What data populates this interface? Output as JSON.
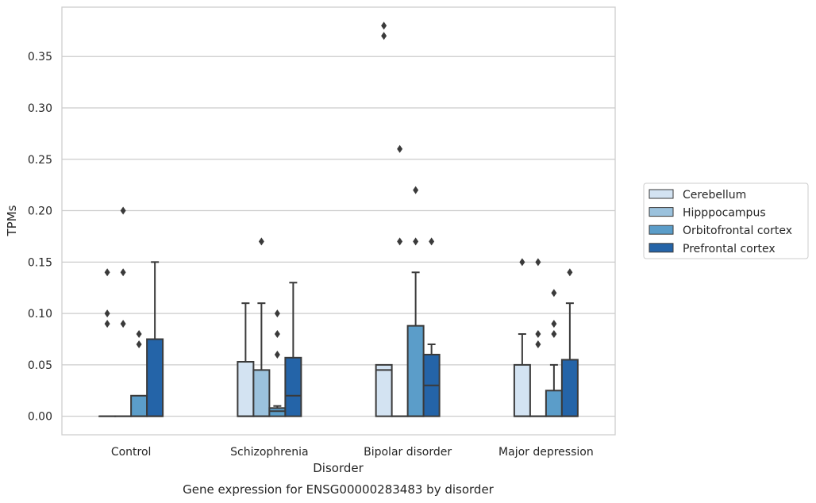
{
  "caption": "Gene expression for ENSG00000283483 by disorder",
  "chart_data": {
    "type": "boxplot",
    "xlabel": "Disorder",
    "ylabel": "TPMs",
    "ylim": [
      -0.018,
      0.398
    ],
    "y_ticks": [
      0.0,
      0.05,
      0.1,
      0.15,
      0.2,
      0.25,
      0.3,
      0.35
    ],
    "y_tick_labels": [
      "0.00",
      "0.05",
      "0.10",
      "0.15",
      "0.20",
      "0.25",
      "0.30",
      "0.35"
    ],
    "grid": true,
    "legend_position": "right",
    "categories": [
      "Control",
      "Schizophrenia",
      "Bipolar disorder",
      "Major depression"
    ],
    "series": [
      {
        "name": "Cerebellum",
        "color": "#d3e3f2",
        "boxes": [
          {
            "q1": 0.0,
            "median": 0.0,
            "q3": 0.0,
            "whisker_low": 0.0,
            "whisker_high": 0.0,
            "outliers": [
              0.1,
              0.14,
              0.09
            ]
          },
          {
            "q1": 0.0,
            "median": 0.0,
            "q3": 0.053,
            "whisker_low": 0.0,
            "whisker_high": 0.11,
            "outliers": []
          },
          {
            "q1": 0.0,
            "median": 0.045,
            "q3": 0.05,
            "whisker_low": 0.0,
            "whisker_high": 0.05,
            "outliers": [
              0.38,
              0.37
            ]
          },
          {
            "q1": 0.0,
            "median": 0.0,
            "q3": 0.05,
            "whisker_low": 0.0,
            "whisker_high": 0.08,
            "outliers": [
              0.15
            ]
          }
        ]
      },
      {
        "name": "Hipppocampus",
        "color": "#9bc2dd",
        "boxes": [
          {
            "q1": 0.0,
            "median": 0.0,
            "q3": 0.0,
            "whisker_low": 0.0,
            "whisker_high": 0.0,
            "outliers": [
              0.2,
              0.14,
              0.09
            ]
          },
          {
            "q1": 0.0,
            "median": 0.0,
            "q3": 0.045,
            "whisker_low": 0.0,
            "whisker_high": 0.11,
            "outliers": [
              0.17
            ]
          },
          {
            "q1": 0.0,
            "median": 0.0,
            "q3": 0.0,
            "whisker_low": 0.0,
            "whisker_high": 0.0,
            "outliers": [
              0.26,
              0.17
            ]
          },
          {
            "q1": 0.0,
            "median": 0.0,
            "q3": 0.0,
            "whisker_low": 0.0,
            "whisker_high": 0.0,
            "outliers": [
              0.15,
              0.08,
              0.07
            ]
          }
        ]
      },
      {
        "name": "Orbitofrontal cortex",
        "color": "#5b9dc9",
        "boxes": [
          {
            "q1": 0.0,
            "median": 0.0,
            "q3": 0.02,
            "whisker_low": 0.0,
            "whisker_high": 0.02,
            "outliers": [
              0.08,
              0.07
            ]
          },
          {
            "q1": 0.0,
            "median": 0.005,
            "q3": 0.008,
            "whisker_low": 0.0,
            "whisker_high": 0.01,
            "outliers": [
              0.1,
              0.08,
              0.06
            ]
          },
          {
            "q1": 0.0,
            "median": 0.0,
            "q3": 0.088,
            "whisker_low": 0.0,
            "whisker_high": 0.14,
            "outliers": [
              0.22,
              0.17
            ]
          },
          {
            "q1": 0.0,
            "median": 0.0,
            "q3": 0.025,
            "whisker_low": 0.0,
            "whisker_high": 0.05,
            "outliers": [
              0.12,
              0.09,
              0.08
            ]
          }
        ]
      },
      {
        "name": "Prefrontal cortex",
        "color": "#2464a8",
        "boxes": [
          {
            "q1": 0.0,
            "median": 0.0,
            "q3": 0.075,
            "whisker_low": 0.0,
            "whisker_high": 0.15,
            "outliers": []
          },
          {
            "q1": 0.0,
            "median": 0.02,
            "q3": 0.057,
            "whisker_low": 0.0,
            "whisker_high": 0.13,
            "outliers": []
          },
          {
            "q1": 0.0,
            "median": 0.03,
            "q3": 0.06,
            "whisker_low": 0.0,
            "whisker_high": 0.07,
            "outliers": [
              0.17
            ]
          },
          {
            "q1": 0.0,
            "median": 0.0,
            "q3": 0.055,
            "whisker_low": 0.0,
            "whisker_high": 0.11,
            "outliers": [
              0.14
            ]
          }
        ]
      }
    ]
  }
}
